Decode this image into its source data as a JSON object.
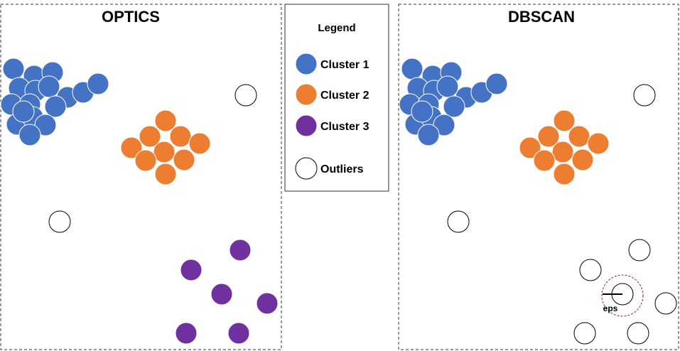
{
  "colors": {
    "cluster1": "#4472C4",
    "cluster2": "#ED7D31",
    "cluster3": "#7030A0",
    "outlier": "#FFFFFF",
    "eps_ring": "#8B2252"
  },
  "panels": {
    "optics": {
      "title": "OPTICS"
    },
    "dbscan": {
      "title": "DBSCAN",
      "eps_label": "eps"
    }
  },
  "legend": {
    "title": "Legend",
    "items": [
      {
        "label": "Cluster 1",
        "color": "#4472C4"
      },
      {
        "label": "Cluster 2",
        "color": "#ED7D31"
      },
      {
        "label": "Cluster 3",
        "color": "#7030A0"
      },
      {
        "label": "Outliers",
        "color": "#FFFFFF"
      }
    ]
  }
}
